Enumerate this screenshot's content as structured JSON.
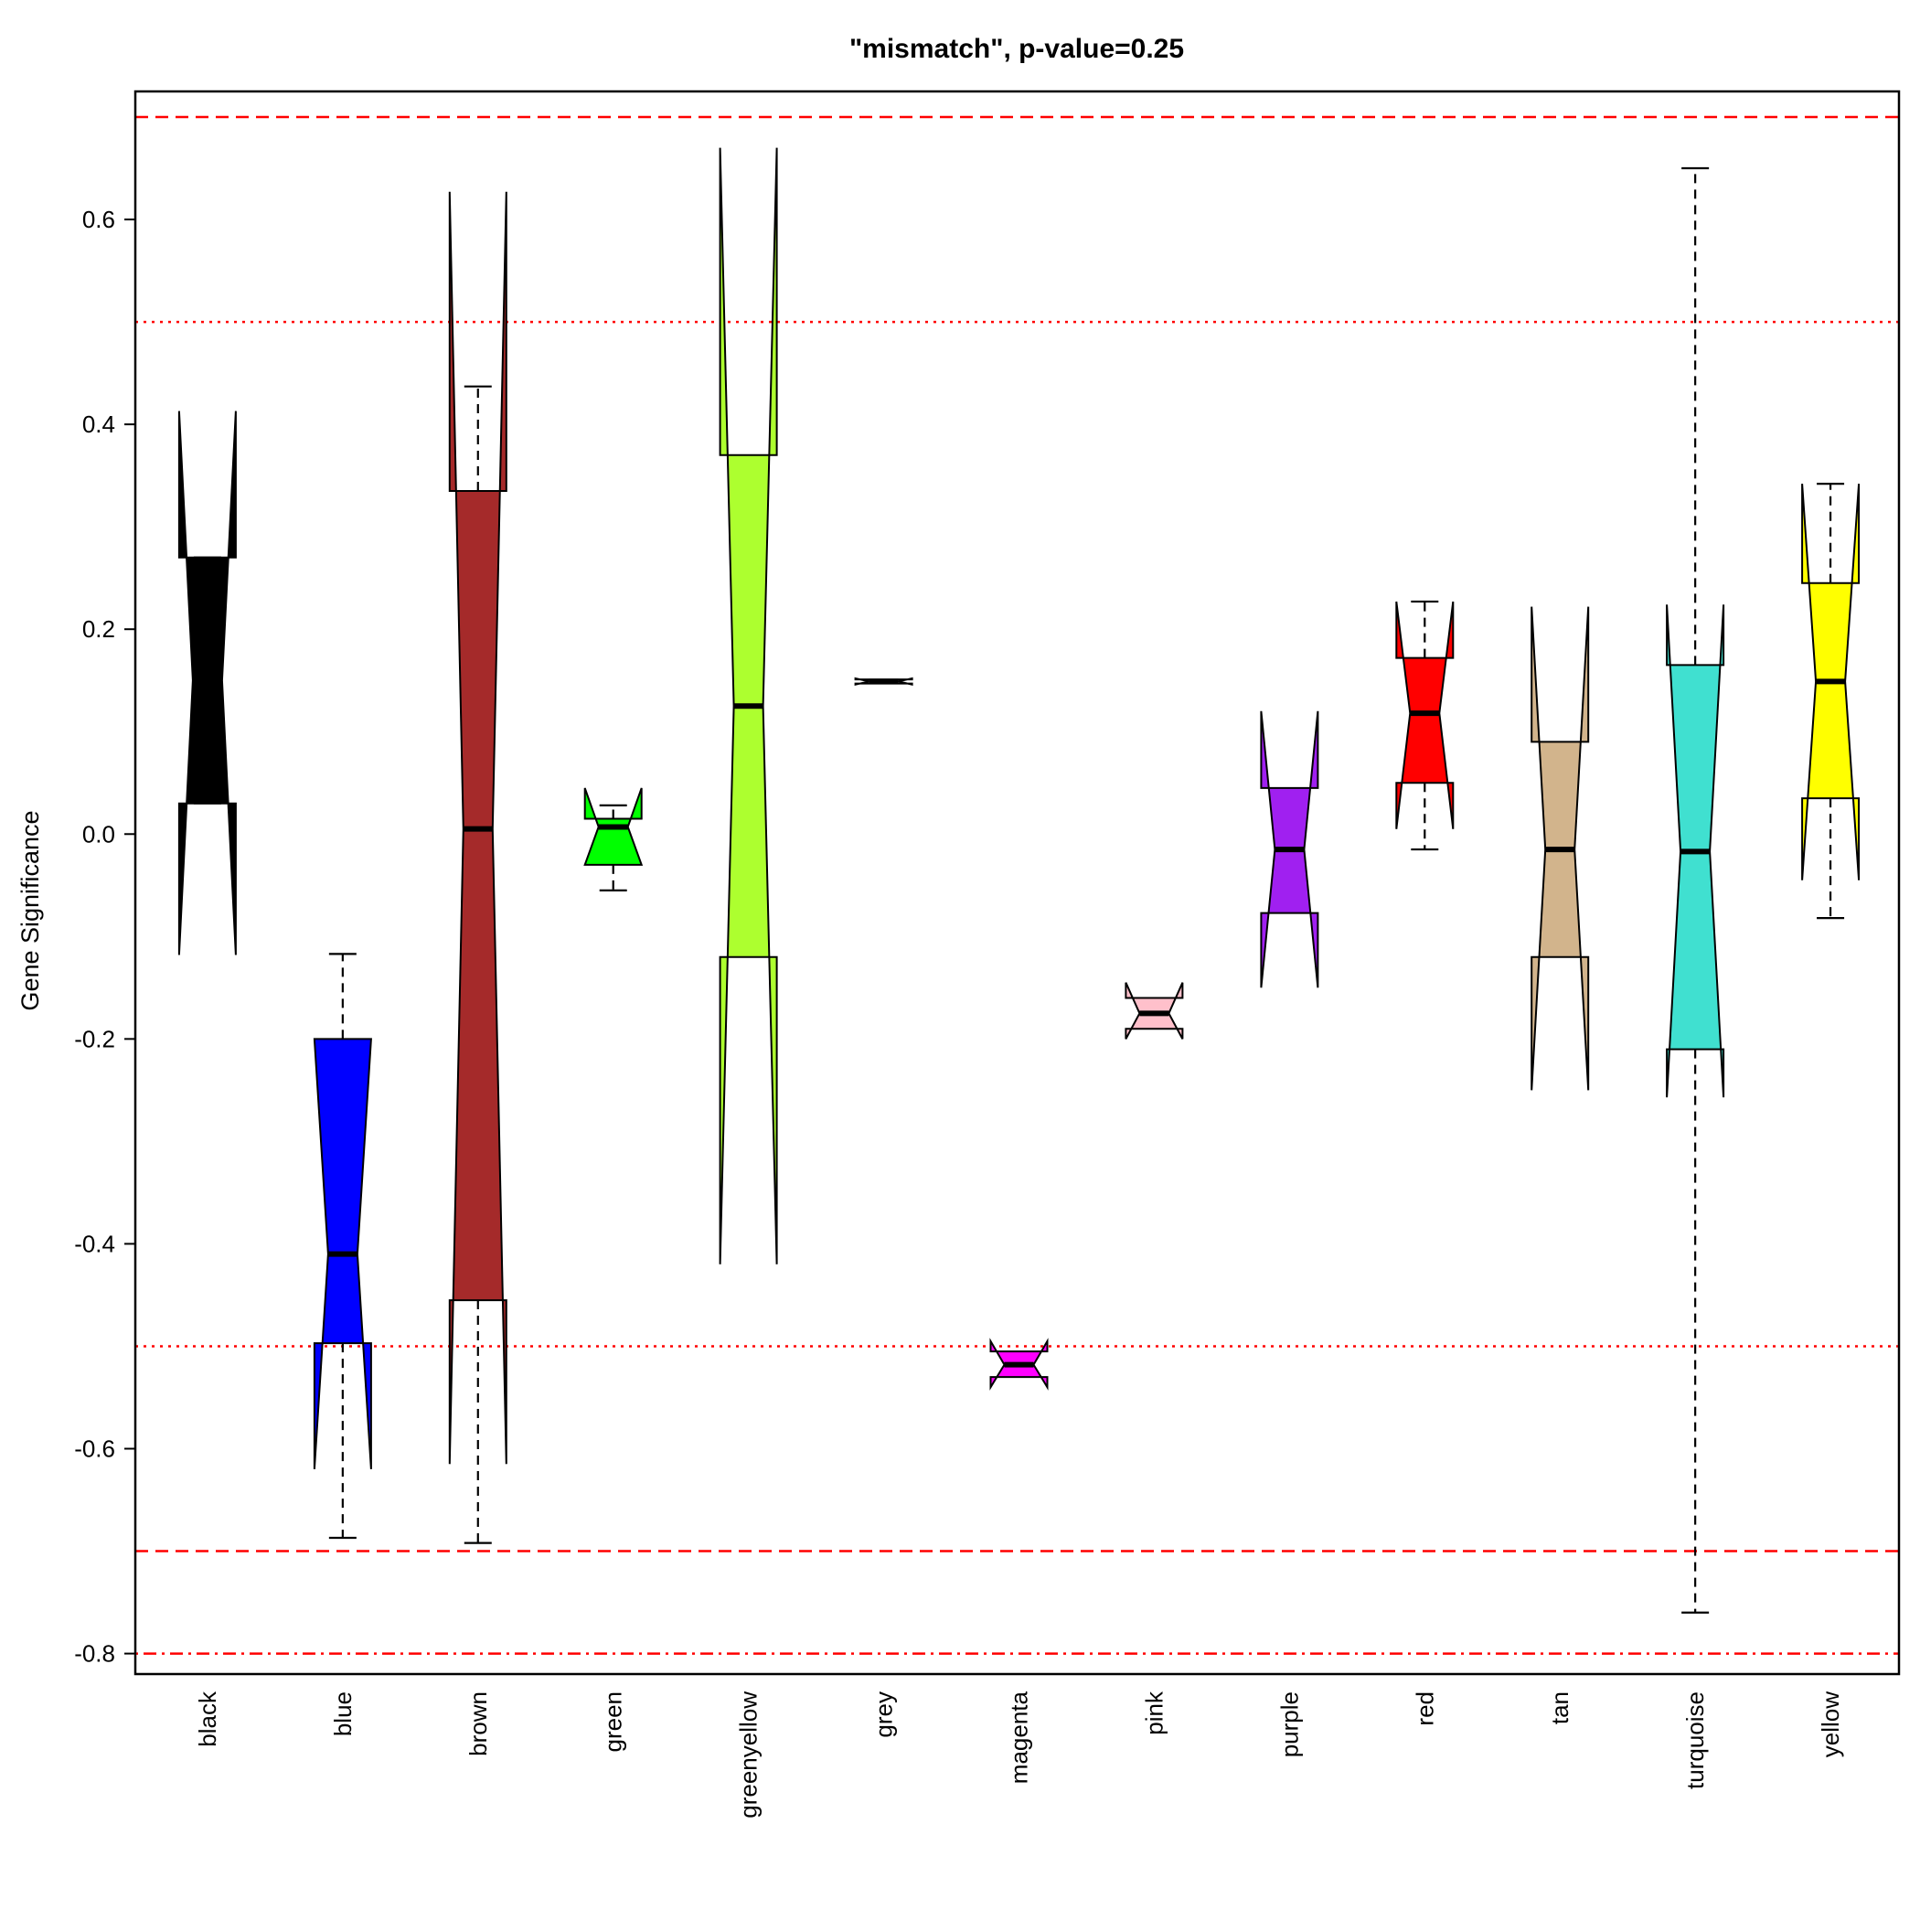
{
  "chart_data": {
    "type": "notched-boxplot",
    "title": "\"mismatch\", p-value=0.25",
    "xlabel": "",
    "ylabel": "Gene Significance",
    "ylim": [
      -0.82,
      0.725
    ],
    "yticks": [
      0.6,
      0.4,
      0.2,
      0.0,
      -0.2,
      -0.4,
      -0.6,
      -0.8
    ],
    "ytick_labels": [
      "0.6",
      "0.4",
      "0.2",
      "0.0",
      "-0.2",
      "-0.4",
      "-0.6",
      "-0.8"
    ],
    "reference_lines": [
      {
        "y": 0.7,
        "style": "dashed",
        "color": "#ff0000"
      },
      {
        "y": 0.5,
        "style": "dotted",
        "color": "#ff0000"
      },
      {
        "y": -0.5,
        "style": "dotted",
        "color": "#ff0000"
      },
      {
        "y": -0.7,
        "style": "dashed",
        "color": "#ff0000"
      },
      {
        "y": -0.8,
        "style": "dotdash",
        "color": "#ff0000"
      }
    ],
    "boxes": [
      {
        "name": "black",
        "color": "#000000",
        "wmin": 0.27,
        "q1": 0.03,
        "median": 0.15,
        "q3": 0.27,
        "wmax": 0.03,
        "nlo": -0.118,
        "nhi": 0.413
      },
      {
        "name": "blue",
        "color": "#0000ff",
        "wmin": -0.687,
        "q1": -0.497,
        "median": -0.41,
        "q3": -0.2,
        "wmax": -0.117,
        "nlo": -0.62,
        "nhi": -0.2
      },
      {
        "name": "brown",
        "color": "#a52a2a",
        "wmin": -0.692,
        "q1": -0.455,
        "median": 0.005,
        "q3": 0.335,
        "wmax": 0.437,
        "nlo": -0.615,
        "nhi": 0.627
      },
      {
        "name": "green",
        "color": "#00ff00",
        "wmin": -0.055,
        "q1": -0.03,
        "median": 0.007,
        "q3": 0.015,
        "wmax": 0.028,
        "nlo": -0.03,
        "nhi": 0.045
      },
      {
        "name": "greenyellow",
        "color": "#adff2f",
        "wmin": -0.12,
        "q1": -0.12,
        "median": 0.125,
        "q3": 0.37,
        "wmax": 0.37,
        "nlo": -0.42,
        "nhi": 0.67
      },
      {
        "name": "grey",
        "color": "#bebebe",
        "wmin": 0.147,
        "q1": 0.147,
        "median": 0.149,
        "q3": 0.151,
        "wmax": 0.151,
        "nlo": 0.146,
        "nhi": 0.152
      },
      {
        "name": "magenta",
        "color": "#ff00ff",
        "wmin": -0.53,
        "q1": -0.53,
        "median": -0.518,
        "q3": -0.505,
        "wmax": -0.505,
        "nlo": -0.54,
        "nhi": -0.495
      },
      {
        "name": "pink",
        "color": "#ffc0cb",
        "wmin": -0.19,
        "q1": -0.19,
        "median": -0.175,
        "q3": -0.16,
        "wmax": -0.16,
        "nlo": -0.2,
        "nhi": -0.145
      },
      {
        "name": "purple",
        "color": "#a020f0",
        "wmin": -0.077,
        "q1": -0.077,
        "median": -0.015,
        "q3": 0.045,
        "wmax": 0.045,
        "nlo": -0.15,
        "nhi": 0.12
      },
      {
        "name": "red",
        "color": "#ff0000",
        "wmin": -0.015,
        "q1": 0.05,
        "median": 0.118,
        "q3": 0.172,
        "wmax": 0.227,
        "nlo": 0.005,
        "nhi": 0.227
      },
      {
        "name": "tan",
        "color": "#d2b48c",
        "wmin": -0.12,
        "q1": -0.12,
        "median": -0.015,
        "q3": 0.09,
        "wmax": 0.09,
        "nlo": -0.25,
        "nhi": 0.222
      },
      {
        "name": "turquoise",
        "color": "#40e0d0",
        "wmin": -0.76,
        "q1": -0.21,
        "median": -0.017,
        "q3": 0.165,
        "wmax": 0.65,
        "nlo": -0.257,
        "nhi": 0.224
      },
      {
        "name": "yellow",
        "color": "#ffff00",
        "wmin": -0.082,
        "q1": 0.035,
        "median": 0.149,
        "q3": 0.245,
        "wmax": 0.342,
        "nlo": -0.045,
        "nhi": 0.342
      }
    ]
  }
}
